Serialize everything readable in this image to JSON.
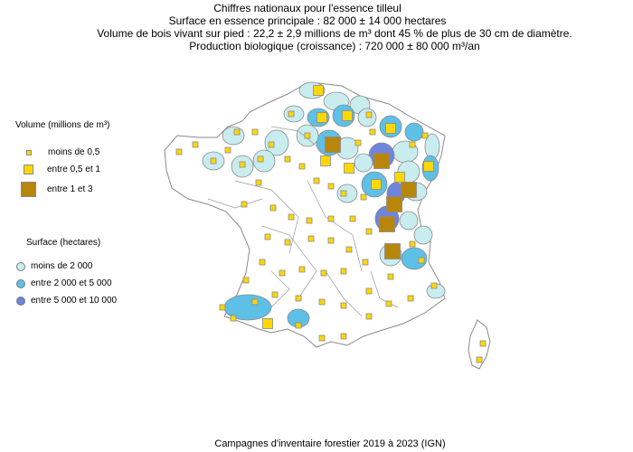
{
  "title": {
    "line1": "Chiffres nationaux pour l'essence tilleul",
    "line2": "Surface en essence principale : 82 000 ± 14 000 hectares",
    "line3": "Volume de bois vivant sur pied : 22,2 ± 2,9 millions de m³ dont 45 % de plus de 30 cm de diamètre.",
    "line4": "Production biologique (croissance) : 720 000 ± 80 000 m³/an"
  },
  "legend_volume": {
    "title": "Volume (millions de m³)",
    "items": [
      {
        "label": "moins de 0,5",
        "color": "#ffd700"
      },
      {
        "label": "entre 0,5 et 1",
        "color": "#ffd700"
      },
      {
        "label": "entre 1 et 3",
        "color": "#b8860b"
      }
    ]
  },
  "legend_surface": {
    "title": "Surface (hectares)",
    "items": [
      {
        "label": "moins de 2 000",
        "color": "#c9ecee"
      },
      {
        "label": "entre 2 000 et 5 000",
        "color": "#5ec0e6"
      },
      {
        "label": "entre 5 000 et 10 000",
        "color": "#6f84dc"
      }
    ]
  },
  "footer": "Campagnes d'inventaire forestier 2019 à 2023 (IGN)",
  "colors": {
    "low": "#c9ecee",
    "mid": "#5ec0e6",
    "high": "#6f84dc",
    "none": "#ffffff",
    "border": "#8a8a8a",
    "vol_small": "#ffd700",
    "vol_large": "#b8860b"
  }
}
